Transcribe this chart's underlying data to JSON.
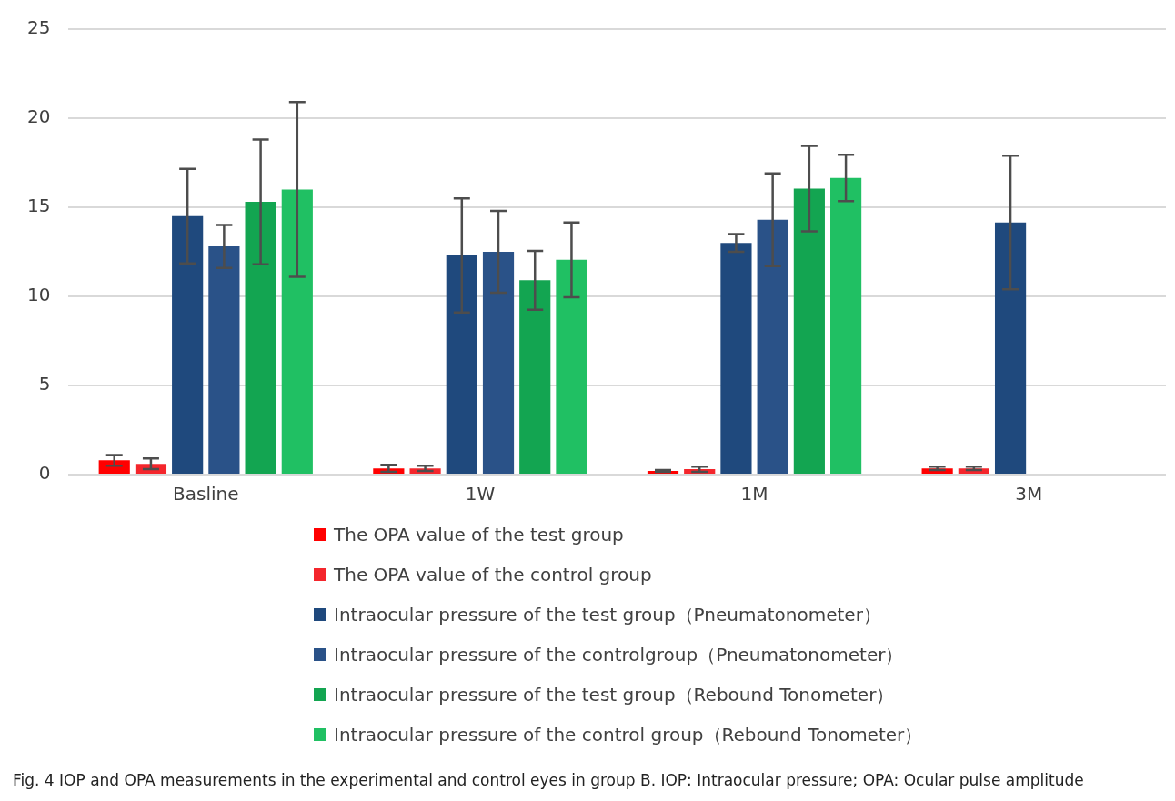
{
  "chart_data": {
    "type": "bar",
    "categories": [
      "Basline",
      "1W",
      "1M",
      "3M"
    ],
    "series": [
      {
        "name": "The OPA value of the test group",
        "color": "#ff0000",
        "values": [
          0.8,
          0.35,
          0.2,
          0.35
        ],
        "errors": [
          0.3,
          0.2,
          0.05,
          0.1
        ]
      },
      {
        "name": "The OPA value of the control group",
        "color": "#f4262c",
        "values": [
          0.6,
          0.35,
          0.3,
          0.35
        ],
        "errors": [
          0.3,
          0.15,
          0.15,
          0.1
        ]
      },
      {
        "name": "Intraocular pressure of the test group（Pneumatonometer）",
        "color": "#1f497d",
        "values": [
          14.5,
          12.3,
          13.0,
          14.15
        ],
        "errors": [
          2.65,
          3.2,
          0.5,
          3.75
        ]
      },
      {
        "name": "Intraocular pressure of the controlgroup（Pneumatonometer）",
        "color": "#2a5288",
        "values": [
          12.8,
          12.5,
          14.3,
          null
        ],
        "errors": [
          1.2,
          2.3,
          2.6,
          null
        ]
      },
      {
        "name": "Intraocular pressure of the test group（Rebound Tonometer）",
        "color": "#13a551",
        "values": [
          15.3,
          10.9,
          16.05,
          null
        ],
        "errors": [
          3.5,
          1.65,
          2.4,
          null
        ]
      },
      {
        "name": "Intraocular pressure of the control group（Rebound Tonometer）",
        "color": "#20c063",
        "values": [
          16.0,
          12.05,
          16.65,
          null
        ],
        "errors": [
          4.9,
          2.1,
          1.3,
          null
        ]
      }
    ],
    "ylim": [
      0,
      25
    ],
    "yticks": [
      0,
      5,
      10,
      15,
      20,
      25
    ],
    "grid": "y",
    "legend": "bottom",
    "annotations": [
      "Fig. 4 IOP and OPA measurements in the experimental and control eyes in group B. IOP: Intraocular pressure; OPA: Ocular pulse amplitude"
    ]
  }
}
